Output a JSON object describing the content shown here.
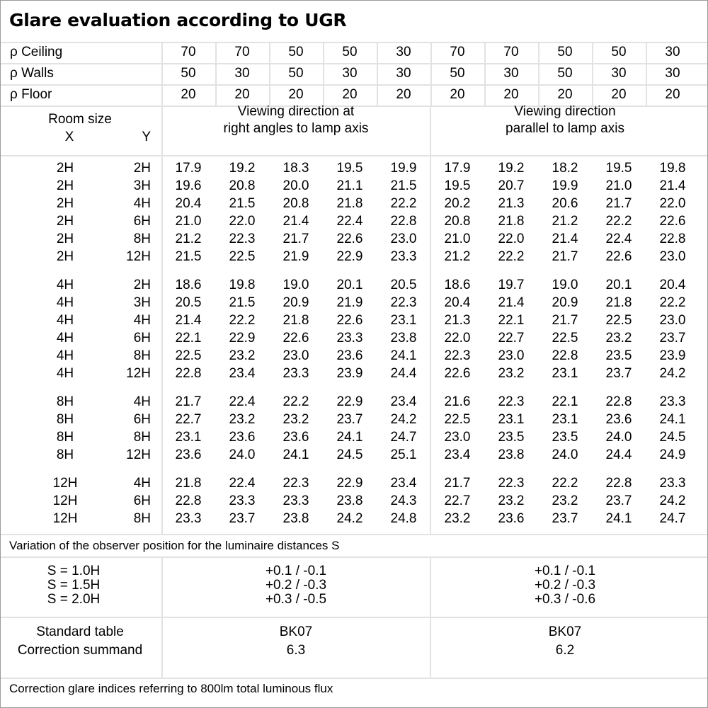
{
  "title": "Glare evaluation according to UGR",
  "reflectances": [
    {
      "label": "ρ Ceiling",
      "values": [
        "70",
        "70",
        "50",
        "50",
        "30",
        "70",
        "70",
        "50",
        "50",
        "30"
      ]
    },
    {
      "label": "ρ Walls",
      "values": [
        "50",
        "30",
        "50",
        "30",
        "30",
        "50",
        "30",
        "50",
        "30",
        "30"
      ]
    },
    {
      "label": "ρ Floor",
      "values": [
        "20",
        "20",
        "20",
        "20",
        "20",
        "20",
        "20",
        "20",
        "20",
        "20"
      ]
    }
  ],
  "header": {
    "room_size": "Room size",
    "x": "X",
    "y": "Y",
    "dir_right": [
      "Viewing direction at",
      "right angles to lamp axis"
    ],
    "dir_parallel": [
      "Viewing direction",
      "parallel to lamp axis"
    ]
  },
  "groups": [
    {
      "rows": [
        {
          "x": "2H",
          "y": "2H",
          "v": [
            "17.9",
            "19.2",
            "18.3",
            "19.5",
            "19.9",
            "17.9",
            "19.2",
            "18.2",
            "19.5",
            "19.8"
          ]
        },
        {
          "x": "2H",
          "y": "3H",
          "v": [
            "19.6",
            "20.8",
            "20.0",
            "21.1",
            "21.5",
            "19.5",
            "20.7",
            "19.9",
            "21.0",
            "21.4"
          ]
        },
        {
          "x": "2H",
          "y": "4H",
          "v": [
            "20.4",
            "21.5",
            "20.8",
            "21.8",
            "22.2",
            "20.2",
            "21.3",
            "20.6",
            "21.7",
            "22.0"
          ]
        },
        {
          "x": "2H",
          "y": "6H",
          "v": [
            "21.0",
            "22.0",
            "21.4",
            "22.4",
            "22.8",
            "20.8",
            "21.8",
            "21.2",
            "22.2",
            "22.6"
          ]
        },
        {
          "x": "2H",
          "y": "8H",
          "v": [
            "21.2",
            "22.3",
            "21.7",
            "22.6",
            "23.0",
            "21.0",
            "22.0",
            "21.4",
            "22.4",
            "22.8"
          ]
        },
        {
          "x": "2H",
          "y": "12H",
          "v": [
            "21.5",
            "22.5",
            "21.9",
            "22.9",
            "23.3",
            "21.2",
            "22.2",
            "21.7",
            "22.6",
            "23.0"
          ]
        }
      ]
    },
    {
      "rows": [
        {
          "x": "4H",
          "y": "2H",
          "v": [
            "18.6",
            "19.8",
            "19.0",
            "20.1",
            "20.5",
            "18.6",
            "19.7",
            "19.0",
            "20.1",
            "20.4"
          ]
        },
        {
          "x": "4H",
          "y": "3H",
          "v": [
            "20.5",
            "21.5",
            "20.9",
            "21.9",
            "22.3",
            "20.4",
            "21.4",
            "20.9",
            "21.8",
            "22.2"
          ]
        },
        {
          "x": "4H",
          "y": "4H",
          "v": [
            "21.4",
            "22.2",
            "21.8",
            "22.6",
            "23.1",
            "21.3",
            "22.1",
            "21.7",
            "22.5",
            "23.0"
          ]
        },
        {
          "x": "4H",
          "y": "6H",
          "v": [
            "22.1",
            "22.9",
            "22.6",
            "23.3",
            "23.8",
            "22.0",
            "22.7",
            "22.5",
            "23.2",
            "23.7"
          ]
        },
        {
          "x": "4H",
          "y": "8H",
          "v": [
            "22.5",
            "23.2",
            "23.0",
            "23.6",
            "24.1",
            "22.3",
            "23.0",
            "22.8",
            "23.5",
            "23.9"
          ]
        },
        {
          "x": "4H",
          "y": "12H",
          "v": [
            "22.8",
            "23.4",
            "23.3",
            "23.9",
            "24.4",
            "22.6",
            "23.2",
            "23.1",
            "23.7",
            "24.2"
          ]
        }
      ]
    },
    {
      "rows": [
        {
          "x": "8H",
          "y": "4H",
          "v": [
            "21.7",
            "22.4",
            "22.2",
            "22.9",
            "23.4",
            "21.6",
            "22.3",
            "22.1",
            "22.8",
            "23.3"
          ]
        },
        {
          "x": "8H",
          "y": "6H",
          "v": [
            "22.7",
            "23.2",
            "23.2",
            "23.7",
            "24.2",
            "22.5",
            "23.1",
            "23.1",
            "23.6",
            "24.1"
          ]
        },
        {
          "x": "8H",
          "y": "8H",
          "v": [
            "23.1",
            "23.6",
            "23.6",
            "24.1",
            "24.7",
            "23.0",
            "23.5",
            "23.5",
            "24.0",
            "24.5"
          ]
        },
        {
          "x": "8H",
          "y": "12H",
          "v": [
            "23.6",
            "24.0",
            "24.1",
            "24.5",
            "25.1",
            "23.4",
            "23.8",
            "24.0",
            "24.4",
            "24.9"
          ]
        }
      ]
    },
    {
      "rows": [
        {
          "x": "12H",
          "y": "4H",
          "v": [
            "21.8",
            "22.4",
            "22.3",
            "22.9",
            "23.4",
            "21.7",
            "22.3",
            "22.2",
            "22.8",
            "23.3"
          ]
        },
        {
          "x": "12H",
          "y": "6H",
          "v": [
            "22.8",
            "23.3",
            "23.3",
            "23.8",
            "24.3",
            "22.7",
            "23.2",
            "23.2",
            "23.7",
            "24.2"
          ]
        },
        {
          "x": "12H",
          "y": "8H",
          "v": [
            "23.3",
            "23.7",
            "23.8",
            "24.2",
            "24.8",
            "23.2",
            "23.6",
            "23.7",
            "24.1",
            "24.7"
          ]
        }
      ]
    }
  ],
  "variation": {
    "label": "Variation of the observer position for the luminaire distances S",
    "rows": [
      {
        "s": "S = 1.0H",
        "right": "+0.1 / -0.1",
        "parallel": "+0.1 / -0.1"
      },
      {
        "s": "S = 1.5H",
        "right": "+0.2 / -0.3",
        "parallel": "+0.2 / -0.3"
      },
      {
        "s": "S = 2.0H",
        "right": "+0.3 / -0.5",
        "parallel": "+0.3 / -0.6"
      }
    ]
  },
  "standard": {
    "table_label": "Standard table",
    "summand_label": "Correction summand",
    "right_table": "BK07",
    "right_summand": "6.3",
    "parallel_table": "BK07",
    "parallel_summand": "6.2"
  },
  "footer": "Correction glare indices referring to 800lm total luminous flux"
}
